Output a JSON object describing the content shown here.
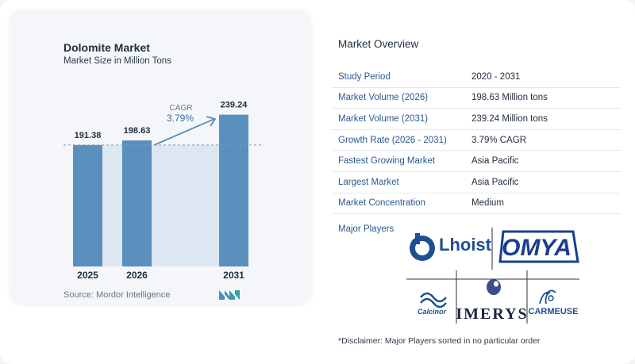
{
  "chart_data": {
    "type": "bar",
    "title": "Dolomite Market",
    "subtitle": "Market Size in Million Tons",
    "categories": [
      "2025",
      "2026",
      "2031"
    ],
    "values": [
      191.38,
      198.63,
      239.24
    ],
    "value_labels": [
      "191.38",
      "198.63",
      "239.24"
    ],
    "cagr_label": "CAGR",
    "cagr_value": "3.79%",
    "colors": {
      "bar": "#5b8fbd",
      "reference_band": "#dce7f2",
      "arrow": "#5b8fbd"
    }
  },
  "source": "Source:  Mordor Intelligence",
  "overview": {
    "title": "Market Overview",
    "rows": [
      {
        "label": "Study Period",
        "value": "2020 - 2031"
      },
      {
        "label": "Market Volume (2026)",
        "value": "198.63 Million tons"
      },
      {
        "label": "Market Volume (2031)",
        "value": "239.24 Million tons"
      },
      {
        "label": "Growth Rate (2026 - 2031)",
        "value": "3.79% CAGR"
      },
      {
        "label": "Fastest Growing Market",
        "value": "Asia Pacific"
      },
      {
        "label": "Largest Market",
        "value": "Asia Pacific"
      },
      {
        "label": "Market Concentration",
        "value": "Medium"
      }
    ],
    "players_label": "Major Players",
    "players": [
      "Lhoist",
      "OMYA",
      "Calcinor",
      "IMERYS",
      "CARMEUSE"
    ]
  },
  "disclaimer": "*Disclaimer: Major Players sorted in no particular order",
  "colors": {
    "label_blue": "#2a5a8f",
    "logo_blue": "#1e4f91",
    "omya_blue": "#1b3f8f"
  }
}
